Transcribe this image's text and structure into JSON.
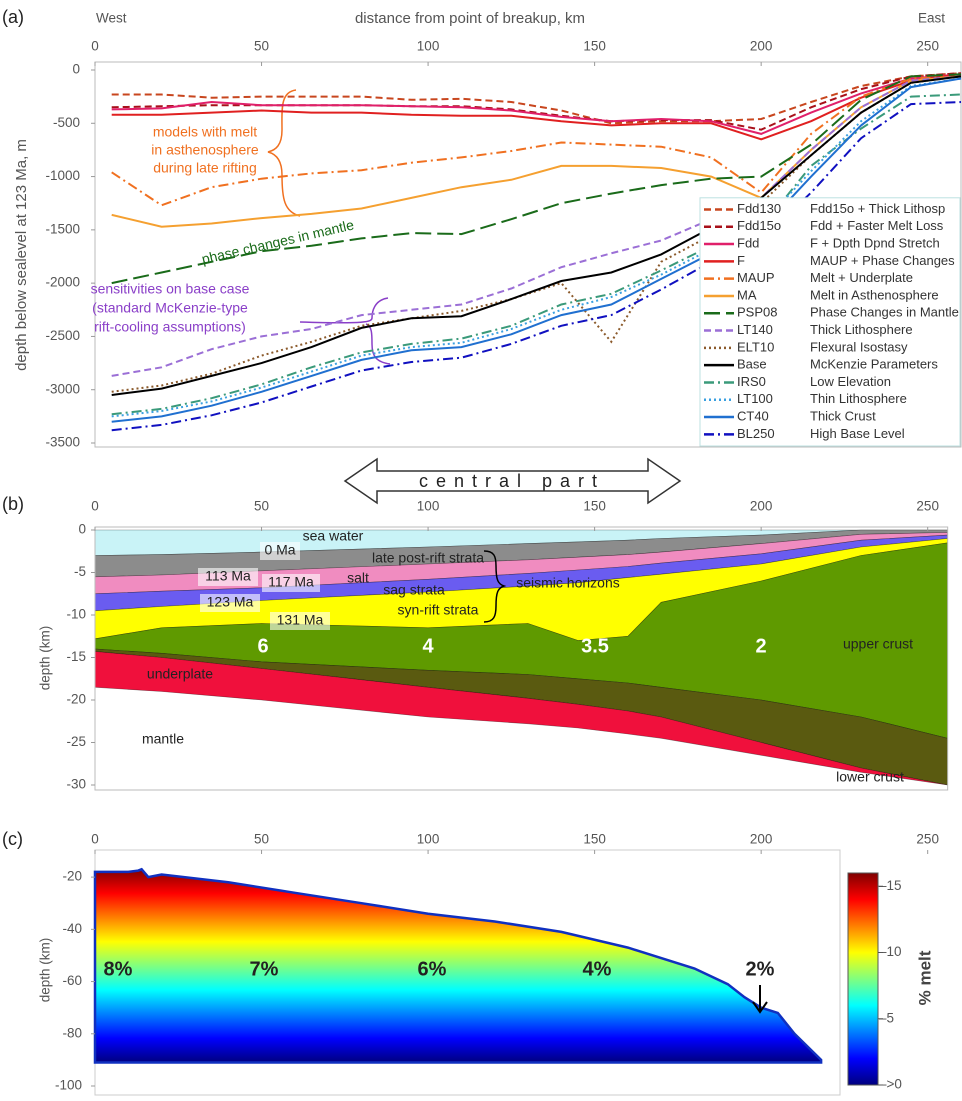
{
  "chart_data": [
    {
      "type": "line",
      "panel_label": "(a)",
      "title": "distance from point of breakup, km",
      "west_label": "West",
      "east_label": "East",
      "y_label": "depth below sealevel at 123 Ma, m",
      "xlim": [
        0,
        260
      ],
      "xticks": [
        0,
        50,
        100,
        150,
        200,
        250
      ],
      "ylim": [
        -3500,
        0
      ],
      "yticks": [
        0,
        -500,
        -1000,
        -1500,
        -2000,
        -2500,
        -3000,
        -3500
      ],
      "x": [
        5,
        20,
        35,
        50,
        65,
        80,
        95,
        110,
        125,
        140,
        155,
        170,
        185,
        200,
        215,
        230,
        245,
        260
      ],
      "legend": "lower right",
      "series": [
        {
          "name": "Fdd130",
          "description": "Fdd15o + Thick Lithosp",
          "color": "#c8461e",
          "dash": "dashed",
          "values": [
            -230,
            -230,
            -260,
            -250,
            -250,
            -250,
            -280,
            -270,
            -300,
            -380,
            -500,
            -480,
            -480,
            -460,
            -300,
            -150,
            -60,
            -30
          ]
        },
        {
          "name": "Fdd15o",
          "description": "Fdd + Faster Melt Loss",
          "color": "#a8101a",
          "dash": "dashed",
          "values": [
            -350,
            -340,
            -330,
            -330,
            -330,
            -330,
            -340,
            -340,
            -370,
            -430,
            -480,
            -470,
            -470,
            -560,
            -350,
            -180,
            -60,
            -30
          ]
        },
        {
          "name": "Fdd",
          "description": "F + Dpth Dpnd Stretch",
          "color": "#e0206a",
          "dash": "solid",
          "values": [
            -370,
            -360,
            -300,
            -330,
            -330,
            -330,
            -340,
            -350,
            -380,
            -440,
            -480,
            -460,
            -480,
            -600,
            -400,
            -220,
            -80,
            -40
          ]
        },
        {
          "name": "F",
          "description": "MAUP + Phase Changes",
          "color": "#e02020",
          "dash": "solid",
          "values": [
            -420,
            -420,
            -400,
            -380,
            -400,
            -400,
            -420,
            -430,
            -430,
            -480,
            -520,
            -500,
            -500,
            -650,
            -480,
            -260,
            -100,
            -40
          ]
        },
        {
          "name": "MAUP",
          "description": "Melt + Underplate",
          "color": "#f07020",
          "dash": "dashdot",
          "values": [
            -960,
            -1270,
            -1100,
            -1020,
            -970,
            -940,
            -870,
            -820,
            -760,
            -680,
            -700,
            -720,
            -820,
            -1150,
            -600,
            -250,
            -80,
            -60
          ]
        },
        {
          "name": "MA",
          "description": "Melt in Asthenosphere",
          "color": "#f5a030",
          "dash": "solid",
          "values": [
            -1360,
            -1470,
            -1440,
            -1390,
            -1350,
            -1300,
            -1200,
            -1100,
            -1030,
            -900,
            -900,
            -920,
            -1000,
            -1200,
            -750,
            -350,
            -100,
            -60
          ]
        },
        {
          "name": "PSP08",
          "description": "Phase Changes in Mantle",
          "color": "#1a6b1a",
          "dash": "longdash",
          "values": [
            -2000,
            -1900,
            -1800,
            -1700,
            -1650,
            -1580,
            -1530,
            -1540,
            -1400,
            -1250,
            -1160,
            -1080,
            -1020,
            -1000,
            -700,
            -280,
            -60,
            -40
          ]
        },
        {
          "name": "LT140",
          "description": "Thick Lithosphere",
          "color": "#9b6fd6",
          "dash": "dashed",
          "values": [
            -2870,
            -2790,
            -2620,
            -2500,
            -2430,
            -2300,
            -2250,
            -2200,
            -2050,
            -1850,
            -1720,
            -1600,
            -1400,
            -1200,
            -750,
            -350,
            -100,
            -60
          ]
        },
        {
          "name": "ELT10",
          "description": "Flexural Isostasy",
          "color": "#8b5a2b",
          "dash": "dotted",
          "values": [
            -3020,
            -2960,
            -2850,
            -2680,
            -2550,
            -2400,
            -2330,
            -2260,
            -2150,
            -2000,
            -2550,
            -1800,
            -1550,
            -1250,
            -800,
            -400,
            -120,
            -60
          ]
        },
        {
          "name": "Base",
          "description": "McKenzie Parameters",
          "color": "#000000",
          "dash": "solid",
          "values": [
            -3050,
            -2990,
            -2870,
            -2750,
            -2600,
            -2420,
            -2330,
            -2310,
            -2150,
            -1980,
            -1900,
            -1730,
            -1480,
            -1200,
            -800,
            -400,
            -120,
            -60
          ]
        },
        {
          "name": "IRS0",
          "description": "Low Elevation",
          "color": "#3a9a7a",
          "dash": "dashdot",
          "values": [
            -3230,
            -3180,
            -3080,
            -2950,
            -2790,
            -2650,
            -2570,
            -2520,
            -2400,
            -2200,
            -2100,
            -1880,
            -1650,
            -1480,
            -900,
            -550,
            -250,
            -230
          ]
        },
        {
          "name": "LT100",
          "description": "Thin Lithosphere",
          "color": "#3aa0e0",
          "dash": "dotted",
          "values": [
            -3250,
            -3200,
            -3110,
            -2980,
            -2830,
            -2680,
            -2600,
            -2560,
            -2430,
            -2250,
            -2130,
            -1920,
            -1680,
            -1450,
            -950,
            -480,
            -150,
            -80
          ]
        },
        {
          "name": "CT40",
          "description": "Thick Crust",
          "color": "#2070d0",
          "dash": "solid",
          "values": [
            -3300,
            -3250,
            -3150,
            -3020,
            -2870,
            -2720,
            -2630,
            -2600,
            -2480,
            -2300,
            -2200,
            -1960,
            -1720,
            -1500,
            -1000,
            -520,
            -160,
            -80
          ]
        },
        {
          "name": "BL250",
          "description": "High Base Level",
          "color": "#1010c0",
          "dash": "dashdot",
          "values": [
            -3380,
            -3330,
            -3240,
            -3120,
            -2970,
            -2820,
            -2740,
            -2700,
            -2570,
            -2400,
            -2300,
            -2060,
            -1800,
            -1600,
            -1150,
            -640,
            -320,
            -300
          ]
        }
      ],
      "annotations": {
        "melt_models": [
          "models with melt",
          "in asthenosphere",
          "during late rifting"
        ],
        "phase_changes": "phase changes in mantle",
        "sensitivities": [
          "sensitivities on base case",
          "(standard McKenzie-type",
          "rift-cooling assumptions)"
        ]
      }
    },
    {
      "type": "cross-section",
      "panel_label": "(b)",
      "arrow_label": "central part",
      "y_label": "depth (km)",
      "xlim": [
        0,
        260
      ],
      "xticks": [
        0,
        50,
        100,
        150,
        200,
        250
      ],
      "ylim": [
        -30,
        0
      ],
      "yticks": [
        0,
        -5,
        -10,
        -15,
        -20,
        -25,
        -30
      ],
      "x": [
        0,
        20,
        50,
        100,
        130,
        145,
        160,
        170,
        200,
        230,
        256
      ],
      "layers": [
        {
          "name": "sea water",
          "color": "#c9f3f7",
          "base": [
            -3,
            -2.9,
            -2.6,
            -2.0,
            -1.6,
            -1.4,
            -1.2,
            -1.0,
            -0.6,
            0,
            0
          ]
        },
        {
          "name": "late post-rift strata",
          "color": "#8c8c8c",
          "base": [
            -5.5,
            -5.3,
            -4.8,
            -4.0,
            -3.5,
            -3.2,
            -2.9,
            -2.6,
            -1.6,
            -0.5,
            -0.3
          ]
        },
        {
          "name": "salt",
          "color": "#f08cc0",
          "base": [
            -7.5,
            -7.2,
            -6.8,
            -5.8,
            -5.1,
            -4.7,
            -4.3,
            -3.9,
            -2.8,
            -1.2,
            -0.6
          ]
        },
        {
          "name": "sag strata",
          "color": "#6a5cf0",
          "base": [
            -9.5,
            -9.0,
            -8.3,
            -7.3,
            -6.6,
            -6.2,
            -5.6,
            -5.2,
            -4.0,
            -2.0,
            -1.0
          ]
        },
        {
          "name": "syn-rift strata",
          "color": "#ffff00",
          "base": [
            -12.8,
            -11.5,
            -11,
            -11.5,
            -11,
            -13,
            -12.5,
            -8.5,
            -6,
            -3,
            -1.5
          ]
        },
        {
          "name": "upper crust",
          "color": "#5f9a00",
          "base": [
            -14,
            -14.5,
            -15.5,
            -16.5,
            -17,
            -17.5,
            -18,
            -18.5,
            -20,
            -22,
            -24.5
          ]
        },
        {
          "name": "lower crust",
          "color": "#5a5a10",
          "base": [
            -14.3,
            -15,
            -16.3,
            -18.5,
            -19.8,
            -20.5,
            -21.3,
            -22,
            -25,
            -28,
            -30
          ]
        },
        {
          "name": "underplate",
          "color": "#f0103c",
          "base": [
            -18.5,
            -19,
            -20,
            -22,
            -22.8,
            -23.3,
            -24,
            -24.5,
            -26.5,
            -28.5,
            -30
          ]
        }
      ],
      "annotations": {
        "horizons": [
          "0 Ma",
          "113 Ma",
          "117 Ma",
          "123 Ma",
          "131 Ma"
        ],
        "seismic": "seismic horizons",
        "mantle": "mantle",
        "factors": [
          "6",
          "4",
          "3.5",
          "2"
        ]
      }
    },
    {
      "type": "melt-section",
      "panel_label": "(c)",
      "y_label": "depth (km)",
      "xlim": [
        0,
        260
      ],
      "xticks": [
        0,
        50,
        100,
        150,
        200,
        250
      ],
      "ylim": [
        -100,
        -10
      ],
      "yticks": [
        -20,
        -40,
        -60,
        -80,
        -100
      ],
      "x": [
        0,
        10,
        13,
        14,
        16,
        20,
        40,
        60,
        80,
        100,
        120,
        140,
        160,
        180,
        190,
        195,
        200,
        205,
        210,
        218
      ],
      "top": [
        -18,
        -18,
        -17.5,
        -17,
        -20,
        -19,
        -22,
        -26,
        -30,
        -34,
        -37,
        -41,
        -47,
        -55,
        -61,
        -66,
        -70,
        -72,
        -80,
        -90
      ],
      "base": -91,
      "colorbar": {
        "label": "% melt",
        "clim": [
          0,
          16
        ],
        "ticks": [
          {
            "value": 15,
            "label": "–15"
          },
          {
            "value": 10,
            "label": "–10"
          },
          {
            "value": 5,
            "label": "–5"
          },
          {
            "value": 0,
            "label": "–>0"
          }
        ]
      },
      "annotations": [
        "8%",
        "7%",
        "6%",
        "4%",
        "2%"
      ]
    }
  ]
}
